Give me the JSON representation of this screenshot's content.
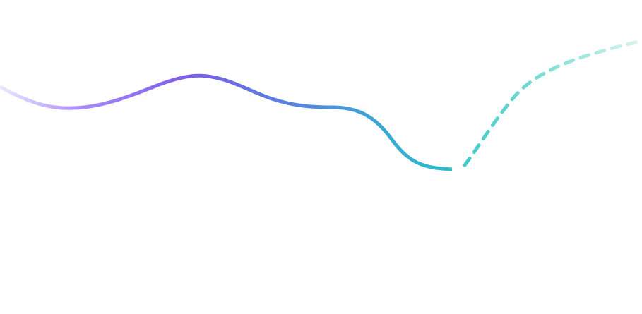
{
  "graphic": {
    "solid_line": {
      "gradient_stops": [
        "#ede9fe",
        "#a78bfa",
        "#7c5ce6",
        "#5b7fe0",
        "#3aa9d4",
        "#2bbcc8"
      ]
    },
    "dashed_line": {
      "gradient_stops": [
        "#3ec9cc",
        "#7fdcd3",
        "#d9f6f0"
      ]
    }
  }
}
